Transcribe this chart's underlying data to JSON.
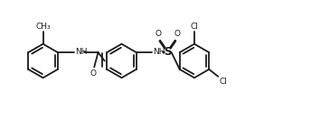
{
  "bg_color": "#ffffff",
  "line_color": "#1a1a1a",
  "line_width": 1.3,
  "text_color": "#1a1a1a",
  "font_size": 6.5,
  "fig_width": 3.44,
  "fig_height": 1.53,
  "dpi": 100,
  "xlim": [
    0.0,
    9.5
  ],
  "ylim": [
    0.8,
    4.2
  ]
}
